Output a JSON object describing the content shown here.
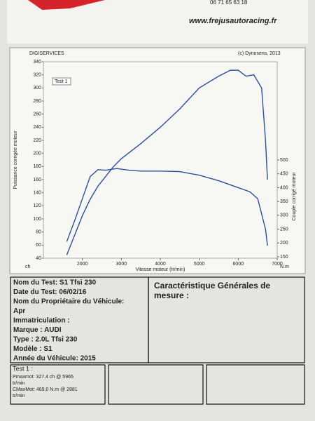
{
  "header": {
    "phone": "06 71 65 63 18",
    "website": "www.frejusautoracing.fr"
  },
  "chart_data": {
    "type": "line",
    "title": "DIGISERVICES",
    "credit": "(c) Dynosens, 2013",
    "legend_label": "Test 1",
    "xlabel": "Vitesse moteur (tr/min)",
    "ylabel": "Puissance corrigée moteur",
    "y2label": "Couple corrigé moteur",
    "yunit": "ch",
    "y2unit": "N.m",
    "xlim": [
      1000,
      7000
    ],
    "xticks": [
      2000,
      3000,
      4000,
      5000,
      6000,
      7000
    ],
    "ylim": [
      40,
      340
    ],
    "yticks": [
      40,
      60,
      80,
      100,
      120,
      140,
      160,
      180,
      200,
      220,
      240,
      260,
      280,
      300,
      320,
      340
    ],
    "y2lim": [
      150,
      500
    ],
    "y2ticks": [
      150,
      200,
      250,
      300,
      350,
      400,
      450,
      500
    ],
    "grid": false,
    "series": [
      {
        "color": "#2c4f9c",
        "x": [
          1600,
          1800,
          2000,
          2200,
          2400,
          2600,
          2800,
          3000,
          3500,
          4000,
          4500,
          5000,
          5500,
          5800,
          6000,
          6200,
          6400,
          6600,
          6700,
          6750
        ],
        "values": [
          45,
          75,
          105,
          130,
          150,
          165,
          180,
          192,
          215,
          240,
          268,
          300,
          318,
          327,
          327,
          318,
          320,
          300,
          220,
          160
        ]
      },
      {
        "color": "#2c4f9c",
        "axis": "y2",
        "x": [
          1600,
          1800,
          2000,
          2200,
          2400,
          2600,
          2881,
          3200,
          3500,
          4000,
          4500,
          5000,
          5500,
          6000,
          6300,
          6500,
          6700,
          6750
        ],
        "values": [
          205,
          280,
          360,
          440,
          465,
          463,
          469,
          463,
          460,
          460,
          458,
          445,
          425,
          400,
          385,
          360,
          250,
          190
        ]
      }
    ]
  },
  "vehicle": {
    "lines": [
      "Nom du Test: S1 Tfsi 230",
      "Date du Test: 06/02/16",
      "Nom du Propriétaire du Véhicule:",
      "Apr",
      "Immatriculation :",
      "Marque : AUDI",
      "Type : 2.0L Tfsi 230",
      "Modèle : S1",
      "Année du Véhicule: 2015"
    ]
  },
  "characteristics": {
    "title_line1": "Caractéristique Générales de",
    "title_line2": "mesure :"
  },
  "results": {
    "title": "Test 1 :",
    "lines": [
      "Pmaxmot: 327,4 ch @ 5965",
      "tr/min",
      "CMaxMot: 469,0 N.m @ 2881",
      "tr/min"
    ]
  }
}
